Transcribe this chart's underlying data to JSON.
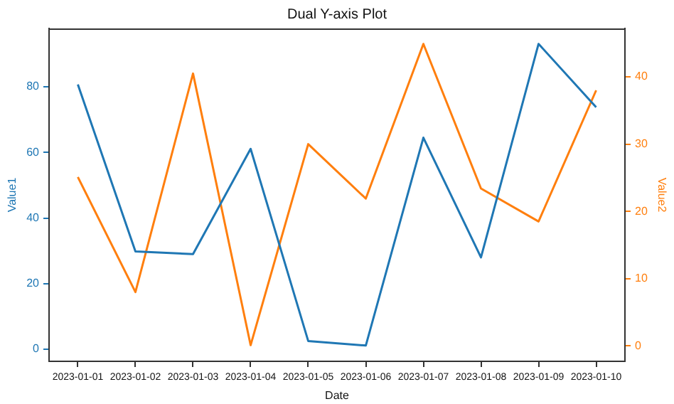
{
  "chart_data": {
    "type": "line",
    "title": "Dual Y-axis Plot",
    "xlabel": "Date",
    "ylabel": "Value1",
    "y2label": "Value2",
    "categories": [
      "2023-01-01",
      "2023-01-02",
      "2023-01-03",
      "2023-01-04",
      "2023-01-05",
      "2023-01-06",
      "2023-01-07",
      "2023-01-08",
      "2023-01-09",
      "2023-01-10"
    ],
    "series": [
      {
        "color": "#1f77b4",
        "values": [
          80.7,
          29.8,
          29.0,
          61.1,
          2.5,
          1.1,
          64.5,
          28.0,
          93.1,
          73.8
        ]
      },
      {
        "color": "#ff7f0e",
        "axis": "y2",
        "values": [
          25.1,
          8.0,
          40.5,
          0.1,
          30.0,
          21.9,
          44.9,
          23.4,
          18.5,
          38.0
        ]
      }
    ],
    "ylim": [
      -3.7,
      97.8
    ],
    "yticks": [
      0,
      20,
      40,
      60,
      80
    ],
    "y2lim": [
      -2.3,
      47.2
    ],
    "y2ticks": [
      0,
      10,
      20,
      30,
      40
    ],
    "grid": false,
    "legend": false,
    "marker": "none",
    "line_style": "solid"
  }
}
